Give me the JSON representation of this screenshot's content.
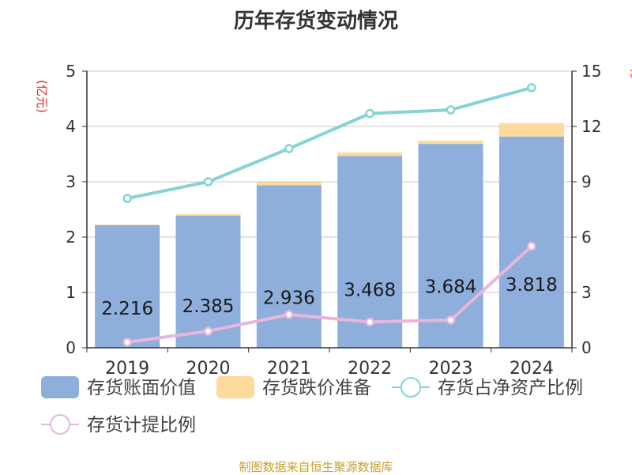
{
  "chart_data": {
    "type": "bar",
    "title": "历年存货变动情况",
    "categories": [
      "2019",
      "2020",
      "2021",
      "2022",
      "2023",
      "2024"
    ],
    "left_axis": {
      "unit": "(亿元)",
      "ylim": [
        0,
        5
      ],
      "ticks": [
        "0",
        "1",
        "2",
        "3",
        "4",
        "5"
      ]
    },
    "right_axis": {
      "unit": "%",
      "ylim": [
        0,
        15
      ],
      "ticks": [
        "0",
        "3",
        "6",
        "9",
        "12",
        "15"
      ]
    },
    "series": [
      {
        "name": "存货账面价值",
        "type": "bar",
        "axis": "left",
        "color": "#8eaedb",
        "values": [
          2.216,
          2.385,
          2.936,
          3.468,
          3.684,
          3.818
        ],
        "labels": [
          "2.216",
          "2.385",
          "2.936",
          "3.468",
          "3.684",
          "3.818"
        ]
      },
      {
        "name": "存货跌价准备",
        "type": "bar",
        "axis": "left",
        "stacked": true,
        "color": "#fdd99b",
        "values": [
          0.01,
          0.03,
          0.06,
          0.06,
          0.06,
          0.24
        ]
      },
      {
        "name": "存货占净资产比例",
        "type": "line",
        "axis": "right",
        "color": "#86d3d5",
        "values": [
          8.1,
          9.0,
          10.8,
          12.7,
          12.9,
          14.1
        ]
      },
      {
        "name": "存货计提比例",
        "type": "line",
        "axis": "right",
        "color": "#e8b6da",
        "values": [
          0.3,
          0.9,
          1.8,
          1.4,
          1.5,
          5.5
        ]
      }
    ],
    "grid": true,
    "legend": "bottom"
  },
  "footer": {
    "source": "制图数据来自恒生聚源数据库"
  }
}
